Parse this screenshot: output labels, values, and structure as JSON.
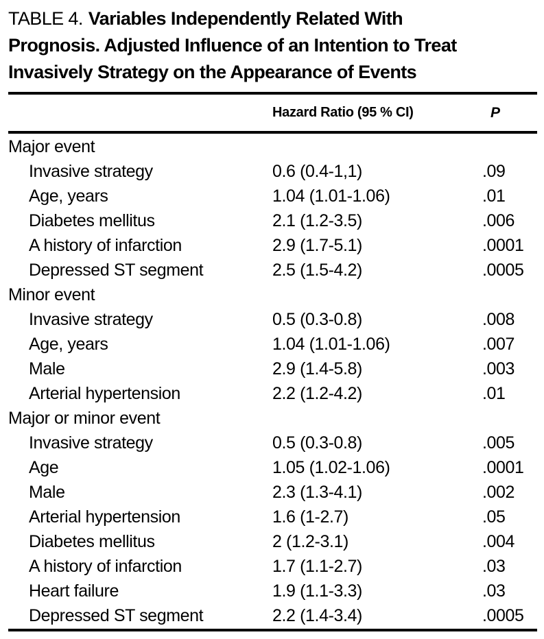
{
  "page": {
    "background_color": "#ffffff",
    "text_color": "#000000"
  },
  "title": {
    "prefix": "TABLE 4.",
    "line1": "Variables Independently Related With",
    "line2": "Prognosis. Adjusted Influence of an Intention to Treat",
    "line3": "Invasively Strategy on the Appearance of Events"
  },
  "table": {
    "header": {
      "hazard_ratio": "Hazard Ratio (95 % CI)",
      "p": "P"
    },
    "sections": [
      {
        "label": "Major event",
        "rows": [
          {
            "variable": "Invasive strategy",
            "hazard_ratio": "0.6 (0.4-1,1)",
            "p": ".09"
          },
          {
            "variable": "Age, years",
            "hazard_ratio": "1.04 (1.01-1.06)",
            "p": ".01"
          },
          {
            "variable": "Diabetes mellitus",
            "hazard_ratio": "2.1 (1.2-3.5)",
            "p": ".006"
          },
          {
            "variable": "A history of infarction",
            "hazard_ratio": "2.9 (1.7-5.1)",
            "p": ".0001"
          },
          {
            "variable": "Depressed ST segment",
            "hazard_ratio": "2.5 (1.5-4.2)",
            "p": ".0005"
          }
        ]
      },
      {
        "label": "Minor event",
        "rows": [
          {
            "variable": "Invasive strategy",
            "hazard_ratio": "0.5 (0.3-0.8)",
            "p": ".008"
          },
          {
            "variable": "Age, years",
            "hazard_ratio": "1.04 (1.01-1.06)",
            "p": ".007"
          },
          {
            "variable": "Male",
            "hazard_ratio": "2.9 (1.4-5.8)",
            "p": ".003"
          },
          {
            "variable": "Arterial hypertension",
            "hazard_ratio": "2.2 (1.2-4.2)",
            "p": ".01"
          }
        ]
      },
      {
        "label": "Major or minor event",
        "rows": [
          {
            "variable": "Invasive strategy",
            "hazard_ratio": "0.5 (0.3-0.8)",
            "p": ".005"
          },
          {
            "variable": "Age",
            "hazard_ratio": "1.05 (1.02-1.06)",
            "p": ".0001"
          },
          {
            "variable": "Male",
            "hazard_ratio": "2.3 (1.3-4.1)",
            "p": ".002"
          },
          {
            "variable": "Arterial hypertension",
            "hazard_ratio": "1.6 (1-2.7)",
            "p": ".05"
          },
          {
            "variable": "Diabetes mellitus",
            "hazard_ratio": "2 (1.2-3.1)",
            "p": ".004"
          },
          {
            "variable": "A history of infarction",
            "hazard_ratio": "1.7 (1.1-2.7)",
            "p": ".03"
          },
          {
            "variable": "Heart failure",
            "hazard_ratio": "1.9 (1.1-3.3)",
            "p": ".03"
          },
          {
            "variable": "Depressed ST segment",
            "hazard_ratio": "2.2 (1.4-3.4)",
            "p": ".0005"
          }
        ]
      }
    ]
  }
}
